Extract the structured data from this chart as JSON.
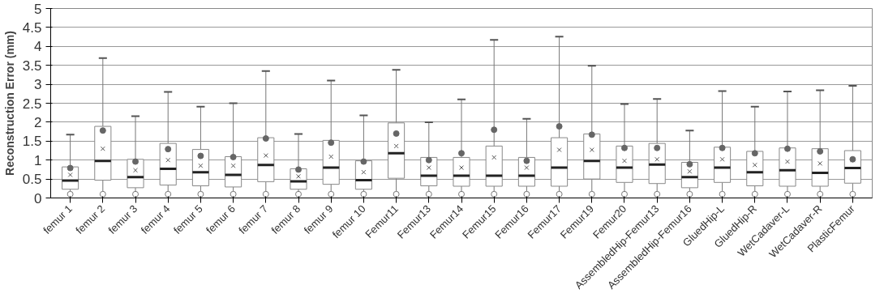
{
  "chart_data": {
    "type": "box",
    "ylabel": "Reconstruction Error (mm)",
    "categories": [
      "femur 1",
      "femur 2",
      "femur 3",
      "femur 4",
      "femur 5",
      "femur 6",
      "femur 7",
      "femur 8",
      "femur 9",
      "femur 10",
      "Femur11",
      "Femur13",
      "Femur14",
      "Femur15",
      "Femur16",
      "Femur17",
      "Femur19",
      "Femur20",
      "AssembledHip-Femur13",
      "AssembledHip-Femur16",
      "GluedHip-L",
      "GluedHip-R",
      "WetCadaver-L",
      "WetCadaver-R",
      "PlasticFemur"
    ],
    "boxes": [
      {
        "low": 0.15,
        "q1": 0.23,
        "median": 0.46,
        "q3": 0.82,
        "high": 1.67,
        "mean": 0.61,
        "outliers": [
          0.1
        ]
      },
      {
        "low": 0.15,
        "q1": 0.47,
        "median": 0.98,
        "q3": 1.89,
        "high": 3.69,
        "mean": 1.3,
        "outliers": [
          0.1
        ]
      },
      {
        "low": 0.15,
        "q1": 0.27,
        "median": 0.55,
        "q3": 1.02,
        "high": 2.16,
        "mean": 0.73,
        "outliers": [
          0.1
        ]
      },
      {
        "low": 0.15,
        "q1": 0.34,
        "median": 0.77,
        "q3": 1.44,
        "high": 2.8,
        "mean": 1.0,
        "outliers": [
          0.1
        ]
      },
      {
        "low": 0.15,
        "q1": 0.32,
        "median": 0.68,
        "q3": 1.28,
        "high": 2.41,
        "mean": 0.85,
        "outliers": [
          0.1
        ]
      },
      {
        "low": 0.15,
        "q1": 0.29,
        "median": 0.61,
        "q3": 1.09,
        "high": 2.5,
        "mean": 0.85,
        "outliers": [
          0.1
        ]
      },
      {
        "low": 0.15,
        "q1": 0.43,
        "median": 0.87,
        "q3": 1.59,
        "high": 3.35,
        "mean": 1.12,
        "outliers": [
          0.1
        ]
      },
      {
        "low": 0.15,
        "q1": 0.23,
        "median": 0.44,
        "q3": 0.77,
        "high": 1.69,
        "mean": 0.57,
        "outliers": [
          0.1
        ]
      },
      {
        "low": 0.15,
        "q1": 0.36,
        "median": 0.8,
        "q3": 1.52,
        "high": 3.1,
        "mean": 1.09,
        "outliers": [
          0.1
        ]
      },
      {
        "low": 0.15,
        "q1": 0.23,
        "median": 0.47,
        "q3": 0.98,
        "high": 2.18,
        "mean": 0.68,
        "outliers": [
          0.1
        ]
      },
      {
        "low": 0.15,
        "q1": 0.52,
        "median": 1.18,
        "q3": 1.98,
        "high": 3.38,
        "mean": 1.37,
        "outliers": [
          0.1
        ]
      },
      {
        "low": 0.15,
        "q1": 0.32,
        "median": 0.59,
        "q3": 1.07,
        "high": 2.0,
        "mean": 0.8,
        "outliers": [
          0.1
        ]
      },
      {
        "low": 0.15,
        "q1": 0.31,
        "median": 0.59,
        "q3": 1.07,
        "high": 2.6,
        "mean": 0.8,
        "outliers": [
          0.1
        ]
      },
      {
        "low": 0.15,
        "q1": 0.31,
        "median": 0.59,
        "q3": 1.37,
        "high": 4.17,
        "mean": 1.07,
        "outliers": [
          0.1
        ]
      },
      {
        "low": 0.15,
        "q1": 0.31,
        "median": 0.59,
        "q3": 1.07,
        "high": 2.09,
        "mean": 0.8,
        "outliers": [
          0.1
        ]
      },
      {
        "low": 0.15,
        "q1": 0.31,
        "median": 0.8,
        "q3": 1.59,
        "high": 4.26,
        "mean": 1.27,
        "outliers": [
          0.1
        ]
      },
      {
        "low": 0.15,
        "q1": 0.5,
        "median": 0.98,
        "q3": 1.69,
        "high": 3.49,
        "mean": 1.27,
        "outliers": [
          0.1
        ]
      },
      {
        "low": 0.15,
        "q1": 0.41,
        "median": 0.8,
        "q3": 1.37,
        "high": 2.48,
        "mean": 0.98,
        "outliers": [
          0.1
        ]
      },
      {
        "low": 0.15,
        "q1": 0.38,
        "median": 0.88,
        "q3": 1.44,
        "high": 2.61,
        "mean": 1.02,
        "outliers": [
          0.1
        ]
      },
      {
        "low": 0.15,
        "q1": 0.27,
        "median": 0.55,
        "q3": 0.94,
        "high": 1.78,
        "mean": 0.7,
        "outliers": [
          0.1
        ]
      },
      {
        "low": 0.15,
        "q1": 0.41,
        "median": 0.8,
        "q3": 1.34,
        "high": 2.82,
        "mean": 1.02,
        "outliers": [
          0.1
        ]
      },
      {
        "low": 0.15,
        "q1": 0.32,
        "median": 0.68,
        "q3": 1.23,
        "high": 2.41,
        "mean": 0.87,
        "outliers": [
          0.1
        ]
      },
      {
        "low": 0.15,
        "q1": 0.31,
        "median": 0.73,
        "q3": 1.32,
        "high": 2.81,
        "mean": 0.96,
        "outliers": [
          0.1
        ]
      },
      {
        "low": 0.15,
        "q1": 0.31,
        "median": 0.66,
        "q3": 1.3,
        "high": 2.84,
        "mean": 0.91,
        "outliers": [
          0.1
        ]
      },
      {
        "low": 0.15,
        "q1": 0.39,
        "median": 0.79,
        "q3": 1.25,
        "high": 2.96,
        "mean": 1.0,
        "outliers": [
          0.1
        ]
      }
    ],
    "series": [
      {
        "type": "scatter",
        "color": "#666666",
        "marker": "circle",
        "values": [
          0.79,
          1.78,
          0.96,
          1.29,
          1.11,
          1.08,
          1.57,
          0.75,
          1.46,
          0.96,
          1.7,
          1.0,
          1.18,
          1.8,
          0.98,
          1.89,
          1.67,
          1.32,
          1.32,
          0.89,
          1.32,
          1.18,
          1.3,
          1.23,
          1.02
        ]
      }
    ],
    "ylim": [
      0,
      5
    ],
    "yticks": [
      0,
      0.5,
      1,
      1.5,
      2,
      2.5,
      3,
      3.5,
      4,
      4.5,
      5
    ],
    "grid": "y"
  }
}
